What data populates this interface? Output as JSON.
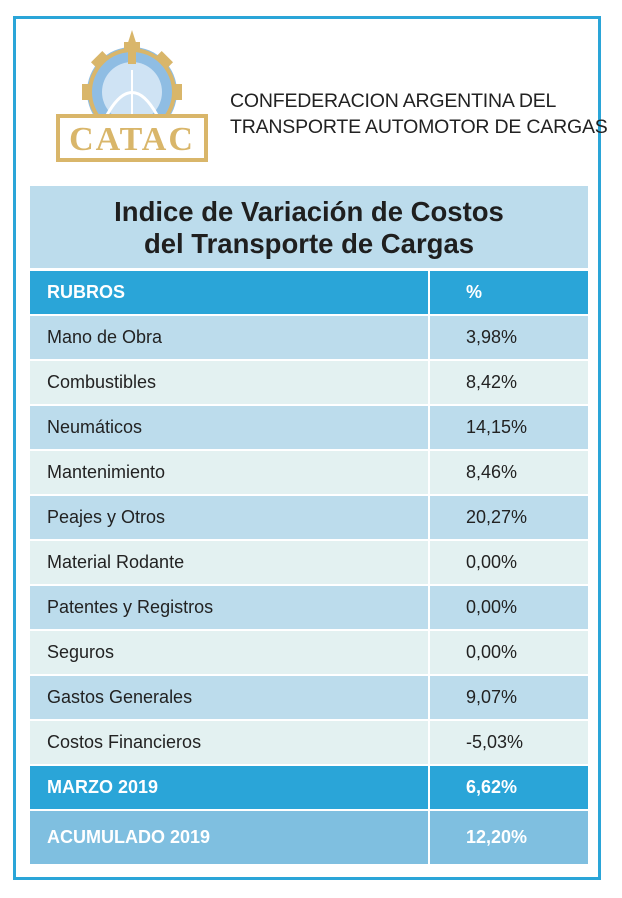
{
  "logo": {
    "text": "CATAC"
  },
  "organization": {
    "line1": "CONFEDERACION ARGENTINA DEL",
    "line2": "TRANSPORTE AUTOMOTOR DE CARGAS"
  },
  "title": {
    "line1": "Indice de Variación de Costos",
    "line2": "del Transporte de Cargas"
  },
  "table": {
    "headers": {
      "rubros": "RUBROS",
      "percent": "%"
    },
    "rows": [
      {
        "label": "Mano de Obra",
        "value": "3,98%"
      },
      {
        "label": "Combustibles",
        "value": "8,42%"
      },
      {
        "label": "Neumáticos",
        "value": "14,15%"
      },
      {
        "label": "Mantenimiento",
        "value": "8,46%"
      },
      {
        "label": "Peajes y Otros",
        "value": "20,27%"
      },
      {
        "label": "Material Rodante",
        "value": "0,00%"
      },
      {
        "label": "Patentes y Registros",
        "value": "0,00%"
      },
      {
        "label": "Seguros",
        "value": "0,00%"
      },
      {
        "label": "Gastos Generales",
        "value": "9,07%"
      },
      {
        "label": "Costos Financieros",
        "value": "-5,03%"
      }
    ],
    "total": {
      "label": "MARZO 2019",
      "value": "6,62%"
    },
    "accumulated": {
      "label": "ACUMULADO 2019",
      "value": "12,20%"
    }
  },
  "colors": {
    "accent": "#2aa5d8",
    "row_dark": "#bcdcec",
    "row_light": "#e3f1f1",
    "accumulated": "#7fbfe0",
    "logo_gold": "#d9b66a"
  }
}
